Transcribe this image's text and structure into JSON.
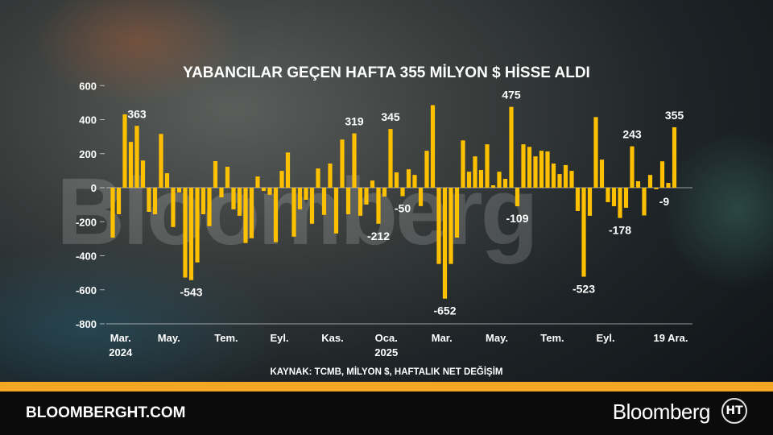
{
  "colors": {
    "bar": "#ffc000",
    "stripe": "#f5a623",
    "footer": "#0b0b0b"
  },
  "watermark": "Bloomberg",
  "chart_data": {
    "type": "bar",
    "title": "YABANCILAR GEÇEN HAFTA 355 MİLYON $ HİSSE ALDI",
    "source": "KAYNAK: TCMB, MİLYON $, HAFTALIK NET DEĞİŞİM",
    "ylim": [
      -800,
      600
    ],
    "y_ticks": [
      600,
      400,
      200,
      0,
      -200,
      -400,
      -600,
      -800
    ],
    "grid": false,
    "x_ticks": [
      {
        "label": "Mar.",
        "sub": "2024",
        "index": 1.3
      },
      {
        "label": "May.",
        "sub": "",
        "index": 9.3
      },
      {
        "label": "Tem.",
        "sub": "",
        "index": 18.8
      },
      {
        "label": "Eyl.",
        "sub": "",
        "index": 27.6
      },
      {
        "label": "Kas.",
        "sub": "",
        "index": 36.4
      },
      {
        "label": "Oca.",
        "sub": "2025",
        "index": 45.3
      },
      {
        "label": "Mar.",
        "sub": "",
        "index": 54.5
      },
      {
        "label": "May.",
        "sub": "",
        "index": 63.6
      },
      {
        "label": "Tem.",
        "sub": "",
        "index": 72.8
      },
      {
        "label": "Eyl.",
        "sub": "",
        "index": 81.6
      },
      {
        "label": "19 Ara.",
        "sub": "",
        "index": 92.4
      }
    ],
    "values": [
      -293,
      -156,
      431,
      269,
      363,
      160,
      -142,
      -156,
      316,
      85,
      -231,
      -28,
      -528,
      -543,
      -439,
      -156,
      -226,
      156,
      -57,
      123,
      -127,
      -165,
      -325,
      -297,
      66,
      -19,
      -42,
      -320,
      99,
      207,
      -288,
      -127,
      -71,
      -212,
      113,
      -160,
      142,
      -269,
      283,
      -156,
      319,
      -165,
      -99,
      42,
      -212,
      -52,
      345,
      90,
      -50,
      108,
      75,
      -108,
      217,
      485,
      -448,
      -652,
      -448,
      -293,
      278,
      94,
      184,
      104,
      255,
      14,
      94,
      52,
      475,
      -109,
      255,
      240,
      184,
      217,
      213,
      142,
      80,
      133,
      99,
      -137,
      -523,
      -165,
      415,
      165,
      -85,
      -109,
      -178,
      -118,
      243,
      38,
      -163,
      75,
      -9,
      155,
      28,
      355
    ],
    "data_labels": [
      {
        "index": 4,
        "text": "363"
      },
      {
        "index": 13,
        "text": "-543"
      },
      {
        "index": 40,
        "text": "319"
      },
      {
        "index": 44,
        "text": "-212"
      },
      {
        "index": 46,
        "text": "345"
      },
      {
        "index": 48,
        "text": "-50"
      },
      {
        "index": 55,
        "text": "-652"
      },
      {
        "index": 66,
        "text": "475"
      },
      {
        "index": 67,
        "text": "-109"
      },
      {
        "index": 78,
        "text": "-523"
      },
      {
        "index": 84,
        "text": "-178"
      },
      {
        "index": 86,
        "text": "243"
      },
      {
        "index": 90,
        "text": "-9"
      },
      {
        "index": 93,
        "text": "355"
      }
    ]
  },
  "footer": {
    "site": "BLOOMBERGHT.COM",
    "brand": "Bloomberg",
    "logo": "HT"
  }
}
